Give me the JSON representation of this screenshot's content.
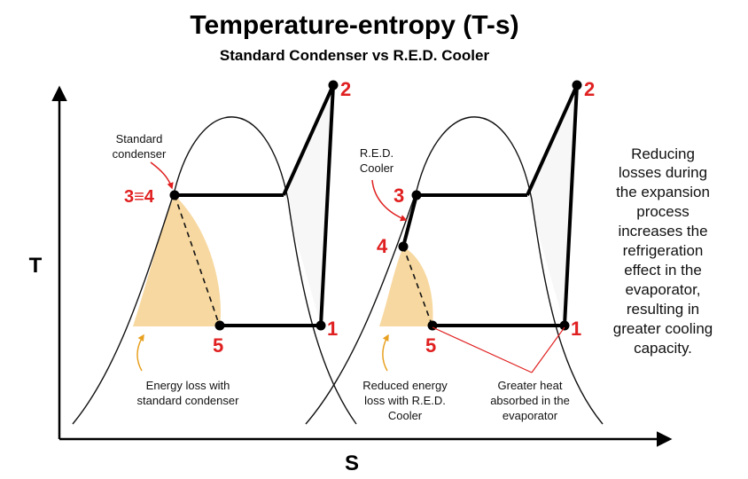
{
  "title": "Temperature-entropy (T-s)",
  "subtitle": "Standard Condenser vs R.E.D. Cooler",
  "axes": {
    "y_label": "T",
    "x_label": "S"
  },
  "left_diagram": {
    "points": {
      "p34": "3≡4",
      "p2": "2",
      "p1": "1",
      "p5": "5"
    },
    "callout": [
      "Standard",
      "condenser"
    ],
    "loss_note": [
      "Energy loss with",
      "standard condenser"
    ]
  },
  "right_diagram": {
    "points": {
      "p3": "3",
      "p4": "4",
      "p2": "2",
      "p1": "1",
      "p5": "5"
    },
    "callout": [
      "R.E.D.",
      "Cooler"
    ],
    "loss_note": [
      "Reduced energy",
      "loss with R.E.D.",
      "Cooler"
    ],
    "heat_note": [
      "Greater heat",
      "absorbed in the",
      "evaporator"
    ]
  },
  "conclusion": [
    "Reducing",
    "losses during",
    "the expansion",
    "process",
    "increases the",
    "refrigeration",
    "effect in the",
    "evaporator,",
    "resulting in",
    "greater cooling",
    "capacity."
  ],
  "colors": {
    "loss_fill": "#f7d8a0",
    "point_label": "#e02020",
    "arrow_red": "#e02020",
    "arrow_orange": "#e8a020"
  }
}
